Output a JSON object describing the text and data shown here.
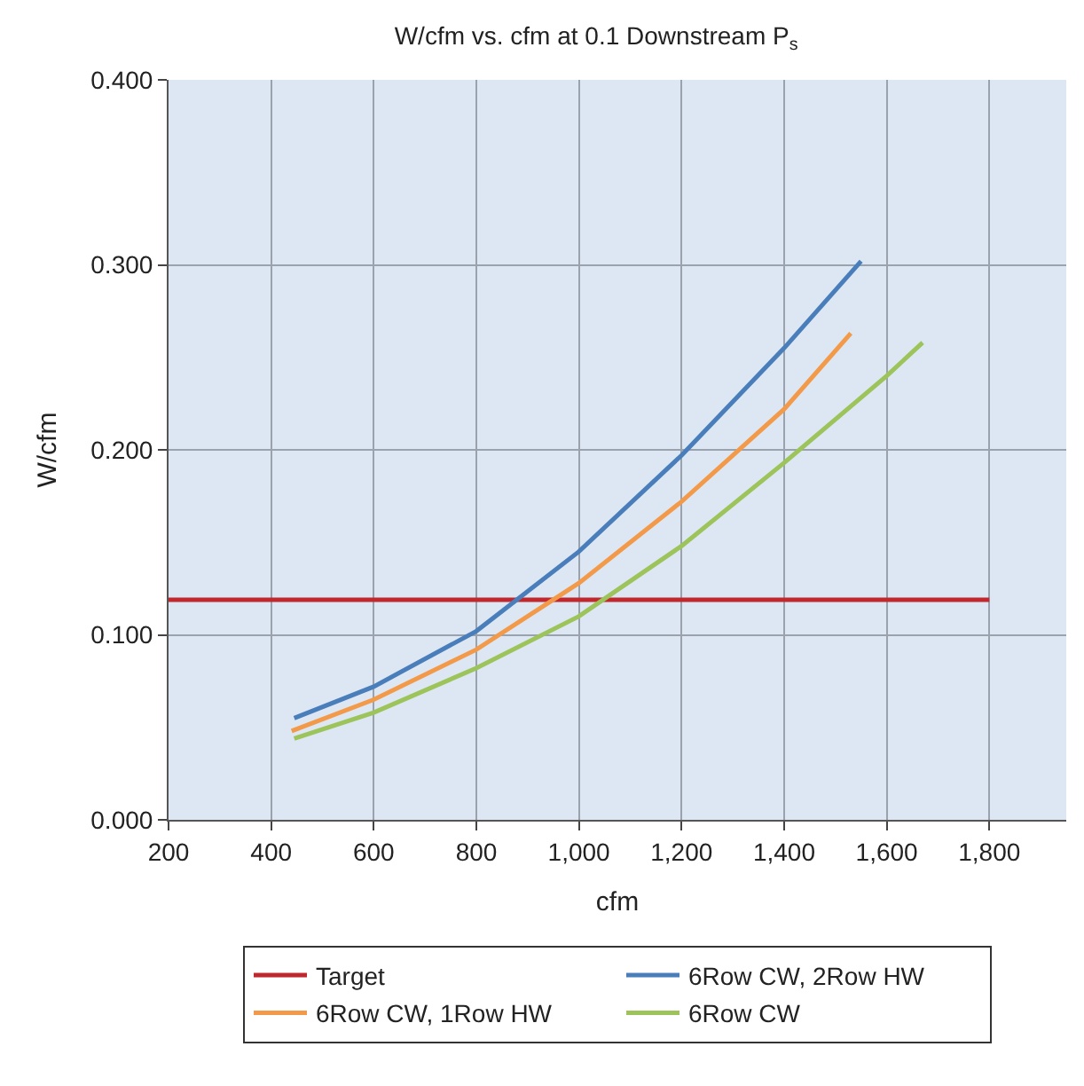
{
  "chart_data": {
    "type": "line",
    "title": "W/cfm vs. cfm at 0.1 Downstream P$_{s}$",
    "xlabel": "cfm",
    "ylabel": "W/cfm",
    "xlim": [
      200,
      1950
    ],
    "xticks": [
      200,
      400,
      600,
      800,
      {
        "value": 1000,
        "label": "1,000"
      },
      {
        "value": 1200,
        "label": "1,200"
      },
      {
        "value": 1400,
        "label": "1,400"
      },
      {
        "value": 1600,
        "label": "1,600"
      },
      {
        "value": 1800,
        "label": "1,800"
      }
    ],
    "ylim": [
      0,
      0.4
    ],
    "yticks": [
      {
        "value": 0,
        "label": "0.000"
      },
      {
        "value": 0.1,
        "label": "0.100"
      },
      {
        "value": 0.2,
        "label": "0.200"
      },
      {
        "value": 0.3,
        "label": "0.300"
      },
      {
        "value": 0.4,
        "label": "0.400"
      }
    ],
    "grid": true,
    "legend": "bottom",
    "marker": "none",
    "line_style": "solid",
    "series": [
      {
        "name": "Target",
        "color": "#c0282d",
        "x": [
          200,
          1800
        ],
        "values": [
          0.119,
          0.119
        ]
      },
      {
        "name": "6Row CW, 2Row HW",
        "color": "#4a7ebb",
        "x": [
          445,
          600,
          800,
          1000,
          1200,
          1400,
          1550
        ],
        "values": [
          0.055,
          0.072,
          0.102,
          0.145,
          0.197,
          0.255,
          0.302
        ]
      },
      {
        "name": "6Row CW, 1Row HW",
        "color": "#f39a4a",
        "x": [
          440,
          600,
          800,
          1000,
          1200,
          1400,
          1530
        ],
        "values": [
          0.048,
          0.065,
          0.092,
          0.128,
          0.172,
          0.222,
          0.263
        ]
      },
      {
        "name": "6Row CW",
        "color": "#9cc45a",
        "x": [
          445,
          600,
          800,
          1000,
          1200,
          1400,
          1600,
          1670
        ],
        "values": [
          0.044,
          0.058,
          0.082,
          0.11,
          0.148,
          0.193,
          0.24,
          0.258
        ]
      }
    ]
  }
}
